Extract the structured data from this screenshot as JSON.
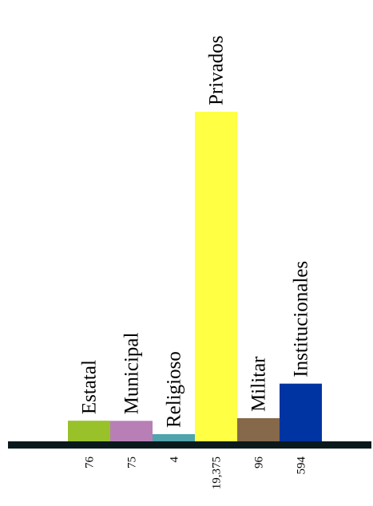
{
  "chart_data": {
    "type": "bar",
    "title": "",
    "xlabel": "",
    "ylabel": "",
    "categories": [
      "Estatal",
      "Municipal",
      "Religioso",
      "Privados",
      "Militar",
      "Institucionales"
    ],
    "values": [
      76,
      75,
      4,
      19375,
      96,
      594
    ],
    "value_labels": [
      "76",
      "75",
      "4",
      "19,375",
      "96",
      "594"
    ],
    "colors": [
      "#99c22a",
      "#b77fb6",
      "#4fa4ad",
      "#ffff44",
      "#85694a",
      "#0034a2"
    ],
    "axis_color": "#0a1a1c",
    "grid": false,
    "legend": "none",
    "note_scale": "bar heights not proportional to values"
  }
}
